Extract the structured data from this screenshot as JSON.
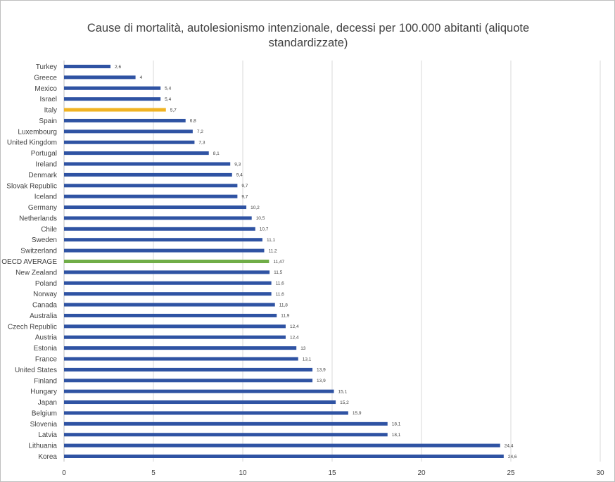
{
  "chart_data": {
    "type": "bar",
    "orientation": "horizontal",
    "title": "Cause di mortalità, autolesionismo intenzionale, decessi per 100.000 abitanti (aliquote standardizzate)",
    "categories": [
      "Turkey",
      "Greece",
      "Mexico",
      "Israel",
      "Italy",
      "Spain",
      "Luxembourg",
      "United Kingdom",
      "Portugal",
      "Ireland",
      "Denmark",
      "Slovak Republic",
      "Iceland",
      "Germany",
      "Netherlands",
      "Chile",
      "Sweden",
      "Switzerland",
      "OECD AVERAGE",
      "New Zealand",
      "Poland",
      "Norway",
      "Canada",
      "Australia",
      "Czech Republic",
      "Austria",
      "Estonia",
      "France",
      "United States",
      "Finland",
      "Hungary",
      "Japan",
      "Belgium",
      "Slovenia",
      "Latvia",
      "Lithuania",
      "Korea"
    ],
    "values": [
      2.6,
      4,
      5.4,
      5.4,
      5.7,
      6.8,
      7.2,
      7.3,
      8.1,
      9.3,
      9.4,
      9.7,
      9.7,
      10.2,
      10.5,
      10.7,
      11.1,
      11.2,
      11.47,
      11.5,
      11.6,
      11.6,
      11.8,
      11.9,
      12.4,
      12.4,
      13,
      13.1,
      13.9,
      13.9,
      15.1,
      15.2,
      15.9,
      18.1,
      18.1,
      24.4,
      24.6
    ],
    "value_labels": [
      "2,6",
      "4",
      "5,4",
      "5,4",
      "5,7",
      "6,8",
      "7,2",
      "7,3",
      "8,1",
      "9,3",
      "9,4",
      "9,7",
      "9,7",
      "10,2",
      "10,5",
      "10,7",
      "11,1",
      "11,2",
      "11,47",
      "11,5",
      "11,6",
      "11,6",
      "11,8",
      "11,9",
      "12,4",
      "12,4",
      "13",
      "13,1",
      "13,9",
      "13,9",
      "15,1",
      "15,2",
      "15,9",
      "18,1",
      "18,1",
      "24,4",
      "24,6"
    ],
    "highlight": {
      "Italy": "#f0b323",
      "OECD AVERAGE": "#70ad47"
    },
    "bar_color": "#2f53a3",
    "xlim": [
      0,
      30
    ],
    "xticks": [
      0,
      5,
      10,
      15,
      20,
      25,
      30
    ],
    "grid": true,
    "legend": "none",
    "xlabel": "",
    "ylabel": ""
  }
}
